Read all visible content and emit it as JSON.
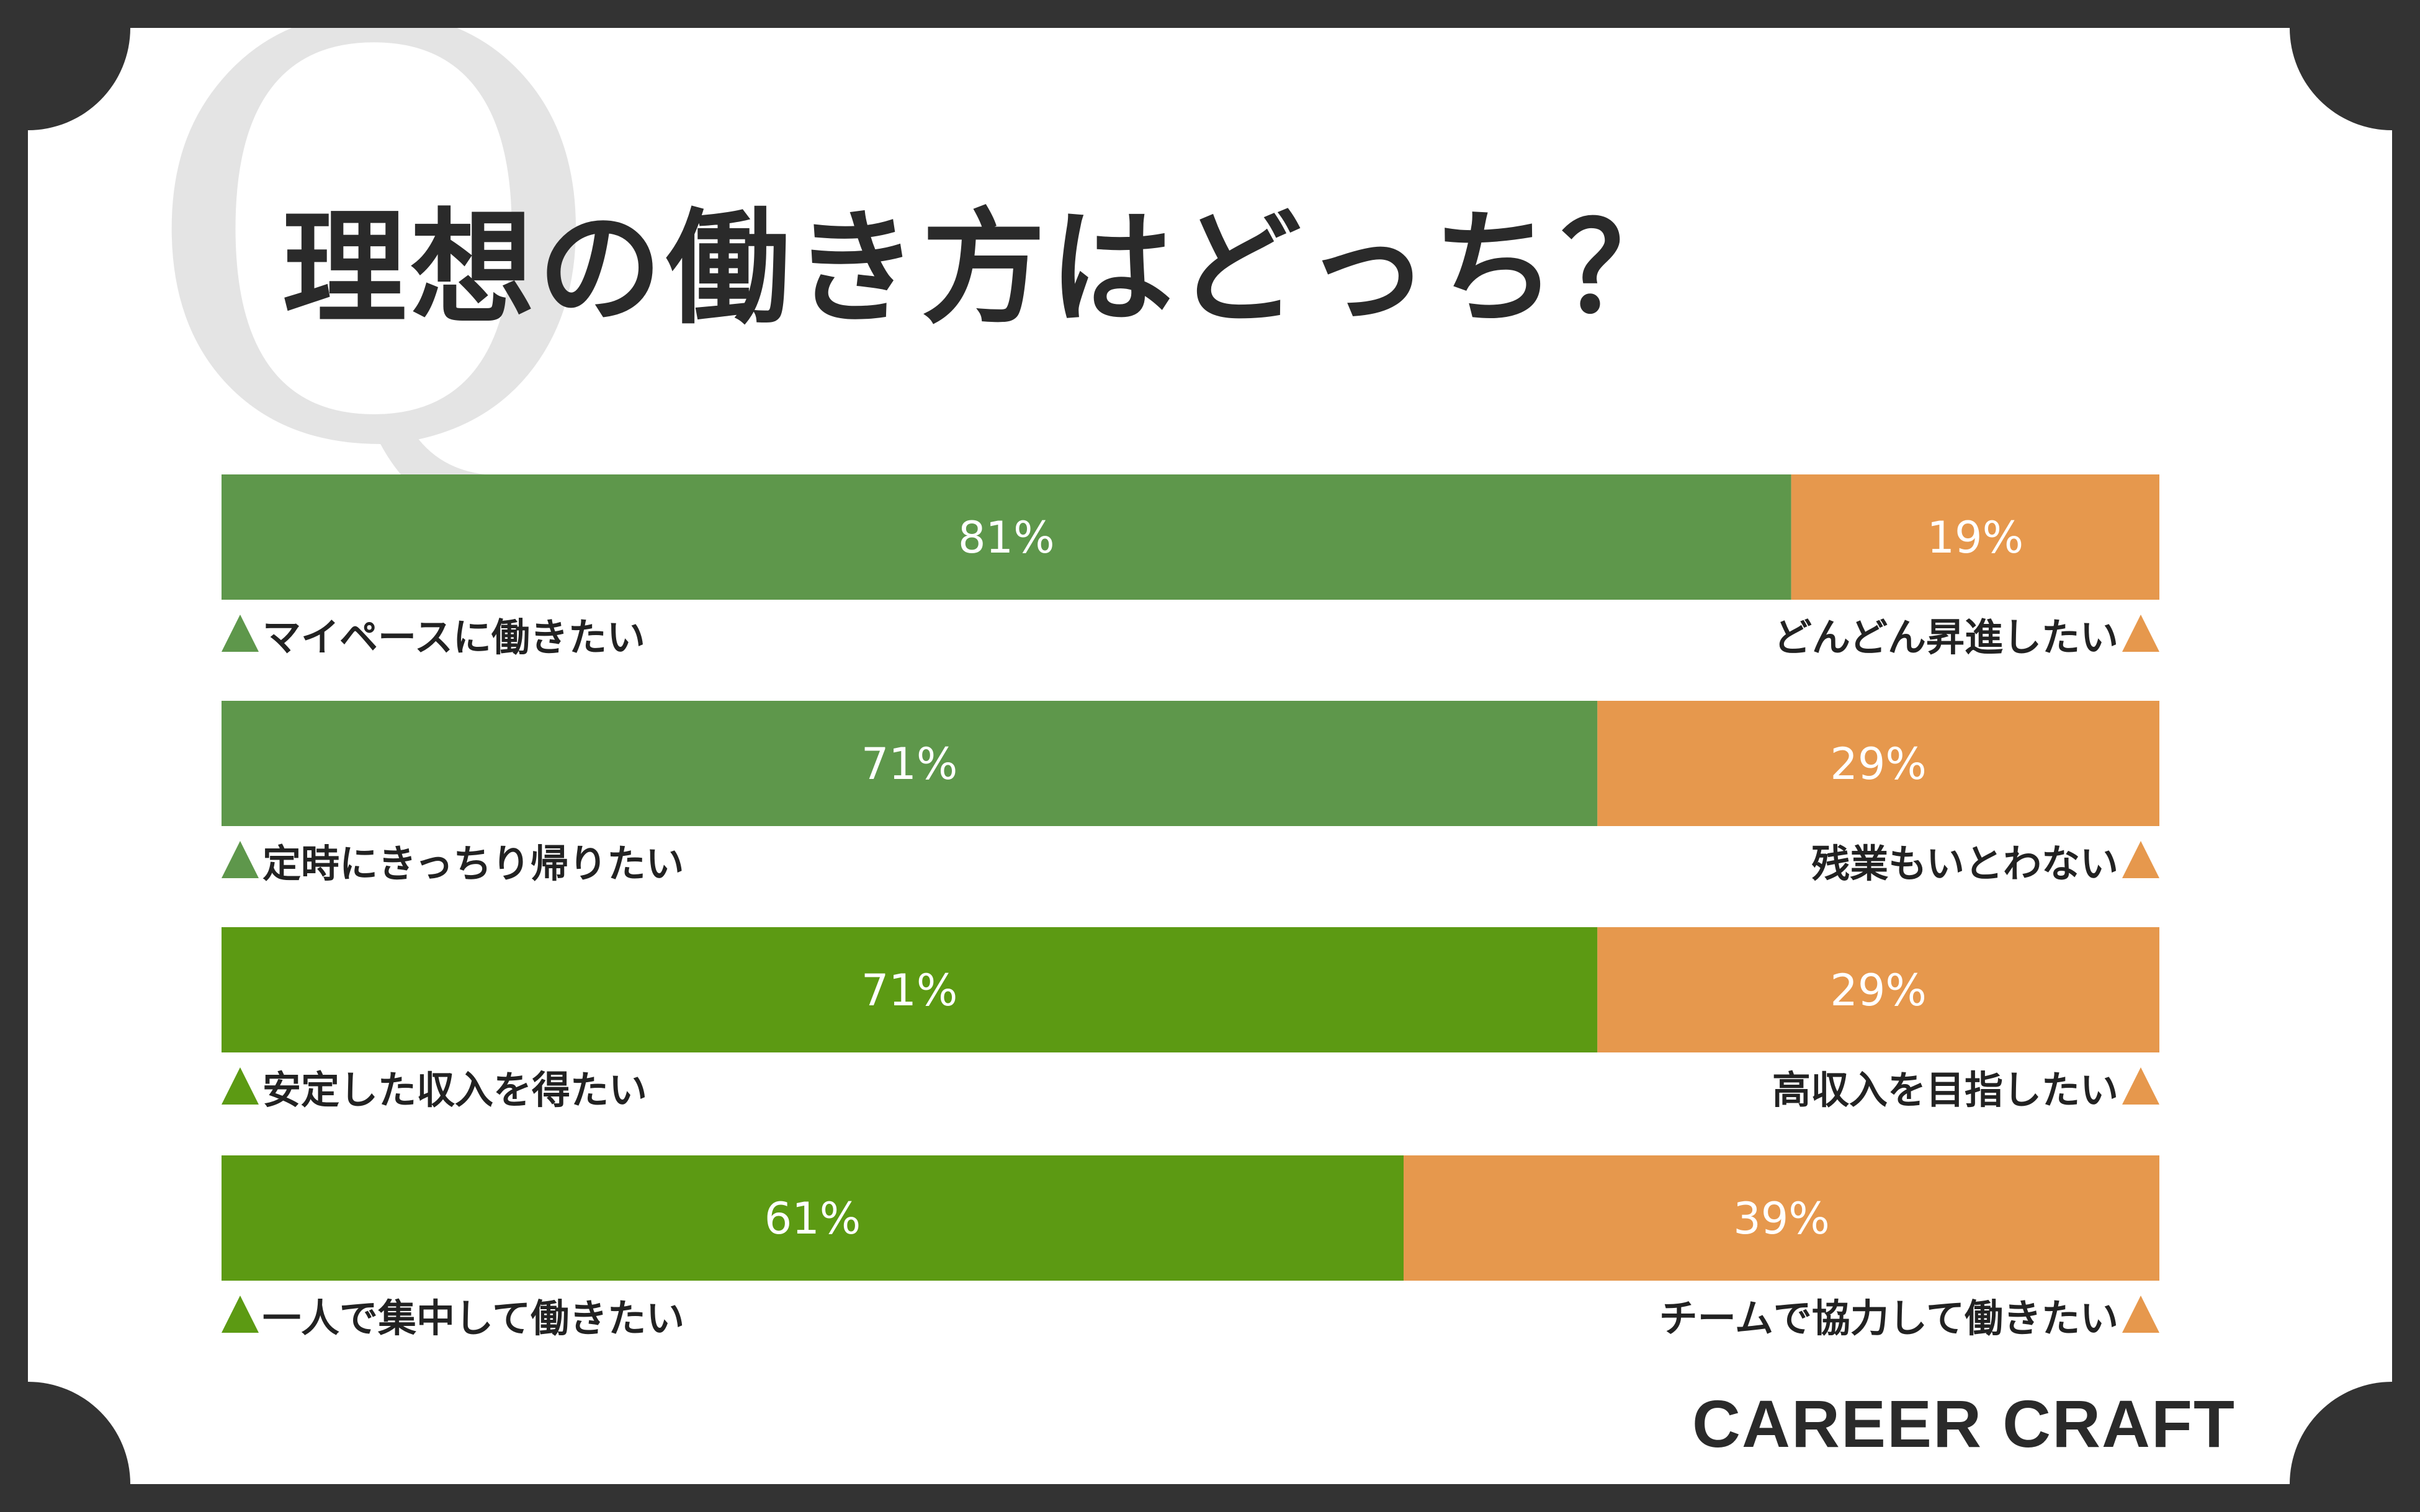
{
  "title": "理想の働き方はどっち？",
  "watermark": "Q",
  "logo": "CAREER CRAFT",
  "colors": {
    "green_a": "#5e974b",
    "green_b": "#5c9a13",
    "orange": "#e6984d",
    "label_text": "#222222",
    "value_text": "#ffffff"
  },
  "chart_data": {
    "type": "bar",
    "stacked": true,
    "orientation": "horizontal",
    "xlim": [
      0,
      100
    ],
    "unit": "%",
    "rows": [
      {
        "left_label": "マイペースに働きたい",
        "right_label": "どんどん昇進したい",
        "left_value": 81,
        "right_value": 19,
        "left_color": "green_a"
      },
      {
        "left_label": "定時にきっちり帰りたい",
        "right_label": "残業もいとわない",
        "left_value": 71,
        "right_value": 29,
        "left_color": "green_a"
      },
      {
        "left_label": "安定した収入を得たい",
        "right_label": "高収入を目指したい",
        "left_value": 71,
        "right_value": 29,
        "left_color": "green_b"
      },
      {
        "left_label": "一人で集中して働きたい",
        "right_label": "チームで協力して働きたい",
        "left_value": 61,
        "right_value": 39,
        "left_color": "green_b"
      }
    ]
  }
}
